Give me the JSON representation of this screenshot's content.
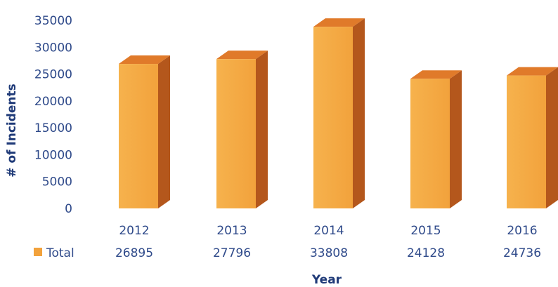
{
  "chart_data": {
    "type": "bar",
    "categories": [
      "2012",
      "2013",
      "2014",
      "2015",
      "2016"
    ],
    "series": [
      {
        "name": "Total",
        "values": [
          26895,
          27796,
          33808,
          24128,
          24736
        ]
      }
    ],
    "xlabel": "Year",
    "ylabel": "# of Incidents",
    "ylim": [
      0,
      35000
    ],
    "yticks": [
      0,
      5000,
      10000,
      15000,
      20000,
      25000,
      30000,
      35000
    ],
    "grid": false,
    "legend": "bottom-left, inline with data table",
    "style": "3d-column",
    "colors": {
      "front": "#f2a23c",
      "side": "#b4571c",
      "top": "#e07a2a",
      "text": "#2f4a8a"
    }
  }
}
